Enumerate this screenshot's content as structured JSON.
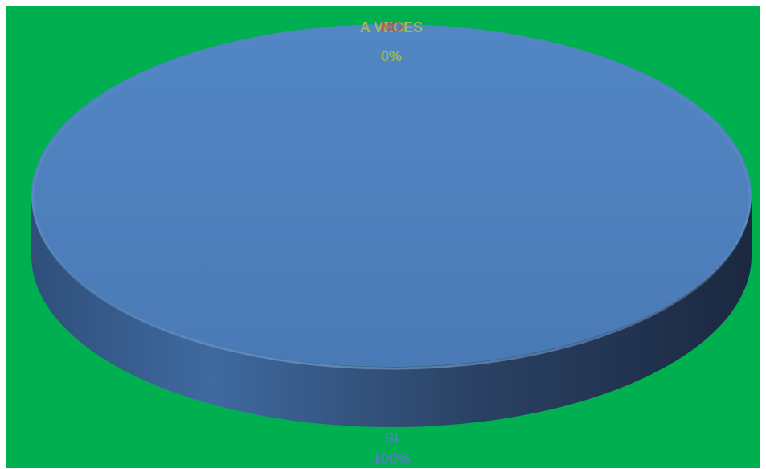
{
  "chart_data": {
    "type": "pie",
    "title": "",
    "categories": [
      "SI",
      "NO",
      "A VECES"
    ],
    "values": [
      100,
      0,
      0
    ],
    "labels": [
      {
        "category": "SI",
        "percent": "100%",
        "color": "#4f81bd"
      },
      {
        "category": "NO",
        "percent": "0%",
        "color": "#c0504d"
      },
      {
        "category": "A VECES",
        "percent": "0%",
        "color": "#9bbb59"
      }
    ],
    "colors": {
      "background": "#00b050",
      "slice_top": "#4f81bd",
      "slice_side_light": "#3f6aa0",
      "slice_side_dark": "#1f2d45",
      "si_label": "#4f81bd",
      "no_label": "#c0504d",
      "aveces_label": "#9bbb59"
    },
    "legend": "none",
    "style": "3d"
  }
}
